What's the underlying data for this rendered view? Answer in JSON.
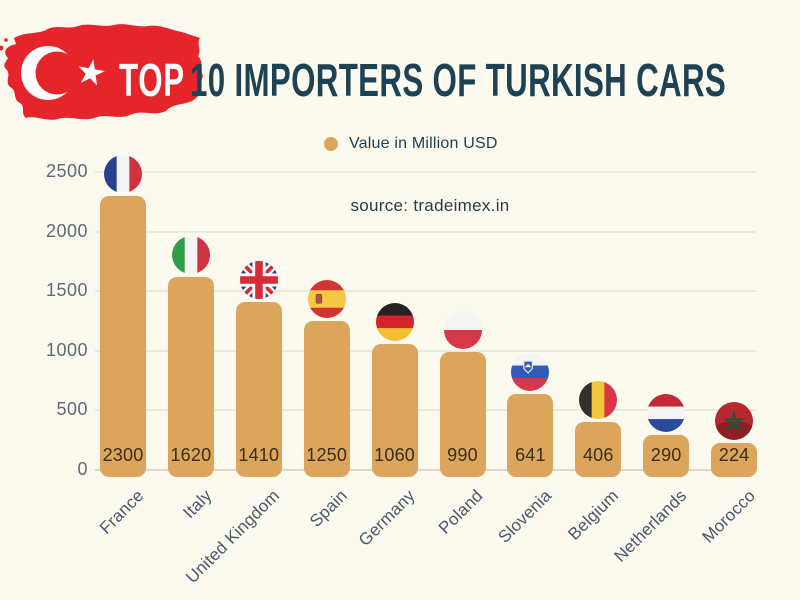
{
  "header": {
    "title_prefix": "TOP",
    "title_rest": "10 IMPORTERS OF TURKISH CARS",
    "logo": "turkey-map-with-flag"
  },
  "legend": {
    "label": "Value in Million USD",
    "dot_color": "#DBA55C"
  },
  "source": {
    "text": "source: tradeimex.in"
  },
  "colors": {
    "background": "#FCF9EF",
    "bar": "#DBA55C",
    "title": "#1C4254",
    "flag_red": "#E5242B",
    "axis_text": "#5E6B72",
    "value_text": "#3A2E13",
    "category_text": "#46596A",
    "gridline": "#ECE9DD",
    "baseline": "#DBD6C6"
  },
  "chart_data": {
    "type": "bar",
    "title": "TOP 10 IMPORTERS OF TURKISH CARS",
    "legend": "Value in Million USD",
    "annotation": "source: tradeimex.in",
    "categories": [
      "France",
      "Italy",
      "United Kingdom",
      "Spain",
      "Germany",
      "Poland",
      "Slovenia",
      "Belgium",
      "Netherlands",
      "Morocco"
    ],
    "values": [
      2300,
      1620,
      1410,
      1250,
      1060,
      990,
      641,
      406,
      290,
      224
    ],
    "bar_color": "#DBA55C",
    "xlabel": "",
    "ylabel": "",
    "ylim": [
      0,
      2500
    ],
    "yticks": [
      0,
      500,
      1000,
      1500,
      2000,
      2500
    ],
    "grid": true,
    "legend_position": "top-center",
    "bar_value_labels_inside_base": true,
    "flags": [
      {
        "country": "France",
        "type": "vertical",
        "colors": [
          "#28418F",
          "#F4F4F4",
          "#D03040"
        ]
      },
      {
        "country": "Italy",
        "type": "vertical",
        "colors": [
          "#2E9E48",
          "#F4F4F4",
          "#CF3341"
        ]
      },
      {
        "country": "United Kingdom",
        "type": "uk",
        "colors": [
          "#2A3B8F",
          "#FFFFFF",
          "#D72C35"
        ]
      },
      {
        "country": "Spain",
        "type": "horizontal",
        "colors": [
          "#D03433",
          "#F6C845",
          "#D03433"
        ],
        "ratios": [
          27,
          46,
          27
        ],
        "crest": "spain"
      },
      {
        "country": "Germany",
        "type": "horizontal",
        "colors": [
          "#26211E",
          "#D2232A",
          "#F5BE32"
        ],
        "ratios": [
          33,
          33,
          34
        ]
      },
      {
        "country": "Poland",
        "type": "horizontal",
        "colors": [
          "#F4F4F4",
          "#D63848"
        ],
        "ratios": [
          50,
          50
        ]
      },
      {
        "country": "Slovenia",
        "type": "horizontal",
        "colors": [
          "#F4F4F4",
          "#2E5CB8",
          "#D63848"
        ],
        "ratios": [
          33,
          33,
          34
        ],
        "crest": "slovenia"
      },
      {
        "country": "Belgium",
        "type": "vertical",
        "colors": [
          "#33302E",
          "#F3C53E",
          "#DC3545"
        ]
      },
      {
        "country": "Netherlands",
        "type": "horizontal",
        "colors": [
          "#C02A34",
          "#F4F4F4",
          "#2A4B9B"
        ],
        "ratios": [
          33,
          33,
          34
        ]
      },
      {
        "country": "Morocco",
        "type": "morocco",
        "colors": [
          "#B5282F",
          "#27523A"
        ]
      }
    ]
  }
}
